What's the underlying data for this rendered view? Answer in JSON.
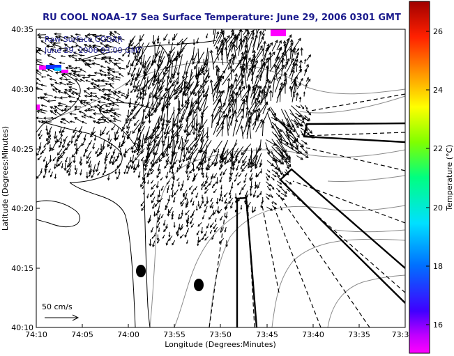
{
  "title": "RU COOL  NOAA–17  Sea Surface Temperature:  June 29, 2006 0301 GMT",
  "annotation": {
    "line1": "Raw Surface CODAR",
    "line2": "June 29, 2006 03:00 GMT"
  },
  "axes": {
    "xlabel": "Longitude (Degrees:Minutes)",
    "ylabel": "Latitude (Degrees:Minutes)",
    "xticks": [
      "74:10",
      "74:05",
      "74:00",
      "73:55",
      "73:50",
      "73:45",
      "73:40",
      "73:35",
      "73:3"
    ],
    "yticks": [
      "40:35",
      "40:30",
      "40:25",
      "40:20",
      "40:15",
      "40:10"
    ]
  },
  "colorbar": {
    "label": "Temperature (°C)",
    "ticks": [
      "26",
      "24",
      "22",
      "20",
      "18",
      "16"
    ],
    "range": [
      15,
      27
    ]
  },
  "scale_vector": {
    "label": "50 cm/s"
  },
  "colors": {
    "title": "#1a1a8c",
    "annotation": "#1a1a8c",
    "vectors": "#000000",
    "contours": "#808080",
    "coast": "#000000"
  }
}
